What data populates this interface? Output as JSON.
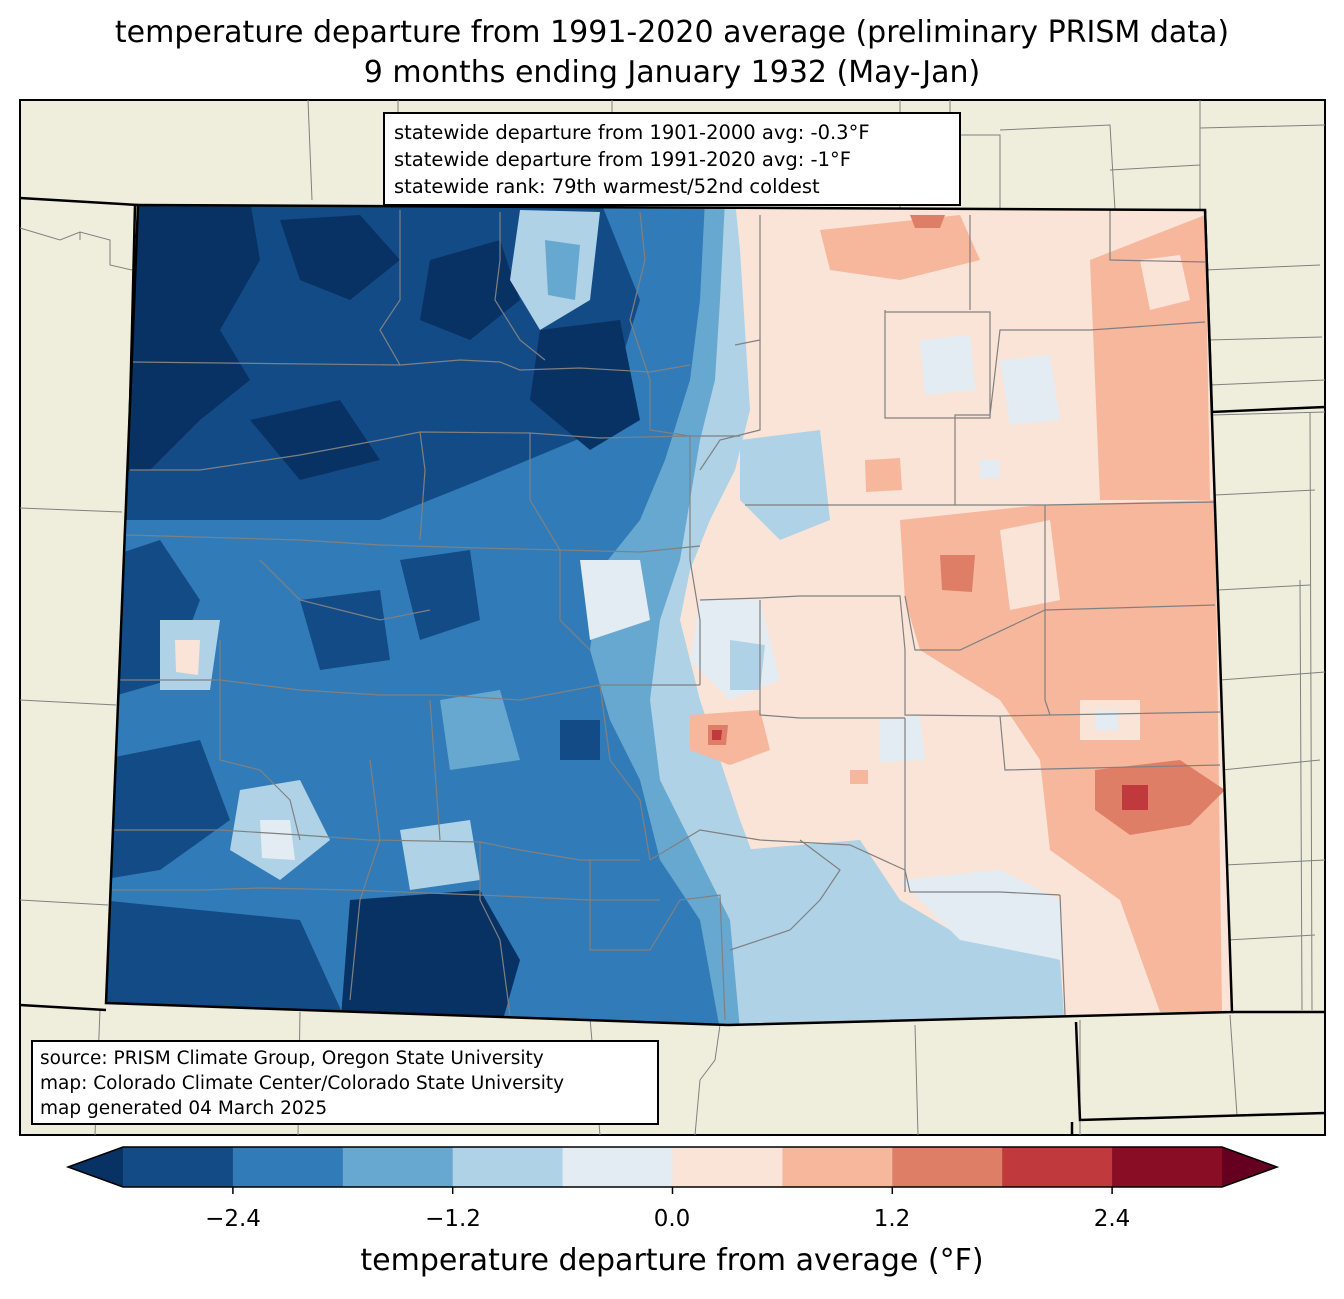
{
  "title": {
    "line1": "temperature departure from 1991-2020 average (preliminary PRISM data)",
    "line2": "9 months ending January 1932 (May-Jan)"
  },
  "stats": {
    "line1": "statewide departure from 1901-2000 avg: -0.3°F",
    "line2": "statewide departure from 1991-2020 avg: -1°F",
    "line3": "statewide rank: 79th warmest/52nd coldest"
  },
  "source": {
    "line1": "source: PRISM Climate Group, Oregon State University",
    "line2": "map: Colorado Climate Center/Colorado State University",
    "line3": "map generated 04 March 2025"
  },
  "colorbar": {
    "label": "temperature departure from average (°F)",
    "ticks": [
      "−2.4",
      "−1.2",
      "0.0",
      "1.2",
      "2.4"
    ],
    "bins": [
      {
        "min": null,
        "max": -3.0,
        "color": "#083263"
      },
      {
        "min": -3.0,
        "max": -2.4,
        "color": "#134b87"
      },
      {
        "min": -2.4,
        "max": -1.8,
        "color": "#317cb8"
      },
      {
        "min": -1.8,
        "max": -1.2,
        "color": "#67a8d0"
      },
      {
        "min": -1.2,
        "max": -0.6,
        "color": "#afd2e6"
      },
      {
        "min": -0.6,
        "max": 0.0,
        "color": "#e3ecf3"
      },
      {
        "min": 0.0,
        "max": 0.6,
        "color": "#fae4d8"
      },
      {
        "min": 0.6,
        "max": 1.2,
        "color": "#f6b79c"
      },
      {
        "min": 1.2,
        "max": 1.8,
        "color": "#df7e67"
      },
      {
        "min": 1.8,
        "max": 2.4,
        "color": "#c0393d"
      },
      {
        "min": 2.4,
        "max": 3.0,
        "color": "#880d25"
      },
      {
        "min": 3.0,
        "max": null,
        "color": "#660020"
      }
    ]
  },
  "colors": {
    "land": "#efeedc",
    "county_lines": "#808080",
    "state_lines": "#000000"
  }
}
